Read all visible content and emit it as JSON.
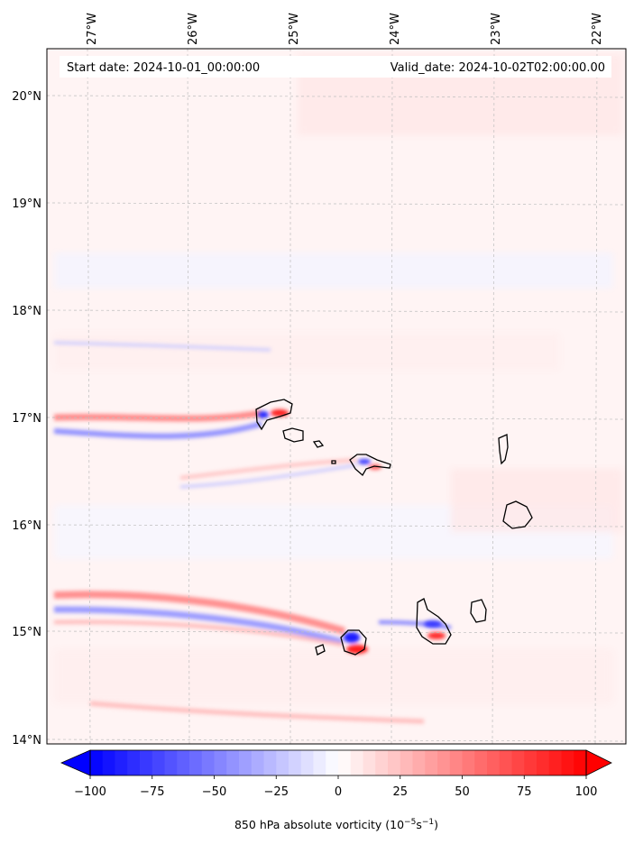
{
  "header": {
    "start_date": "Start date: 2024-10-01_00:00:00",
    "valid_date": "Valid_date: 2024-10-02T02:00:00.00"
  },
  "axes": {
    "lon_labels": [
      "27°W",
      "26°W",
      "25°W",
      "24°W",
      "23°W",
      "22°W"
    ],
    "lat_labels": [
      "20°N",
      "19°N",
      "18°N",
      "17°N",
      "16°N",
      "15°N",
      "14°N"
    ]
  },
  "colorbar": {
    "tick_labels": [
      "−100",
      "−75",
      "−50",
      "−25",
      "0",
      "25",
      "50",
      "75",
      "100"
    ],
    "label_main": "850 hPa absolute vorticity (10",
    "label_exp1": "−5",
    "label_mid": "s",
    "label_exp2": "−1",
    "label_end": ")",
    "min": -100,
    "max": 100,
    "colors": {
      "min": "#0000ff",
      "mid": "#ffffff",
      "max": "#ff0000"
    }
  },
  "map": {
    "field": "850 hPa absolute vorticity",
    "background_tint": "#fff3f3",
    "coastline_color": "#000000",
    "grid": true
  }
}
